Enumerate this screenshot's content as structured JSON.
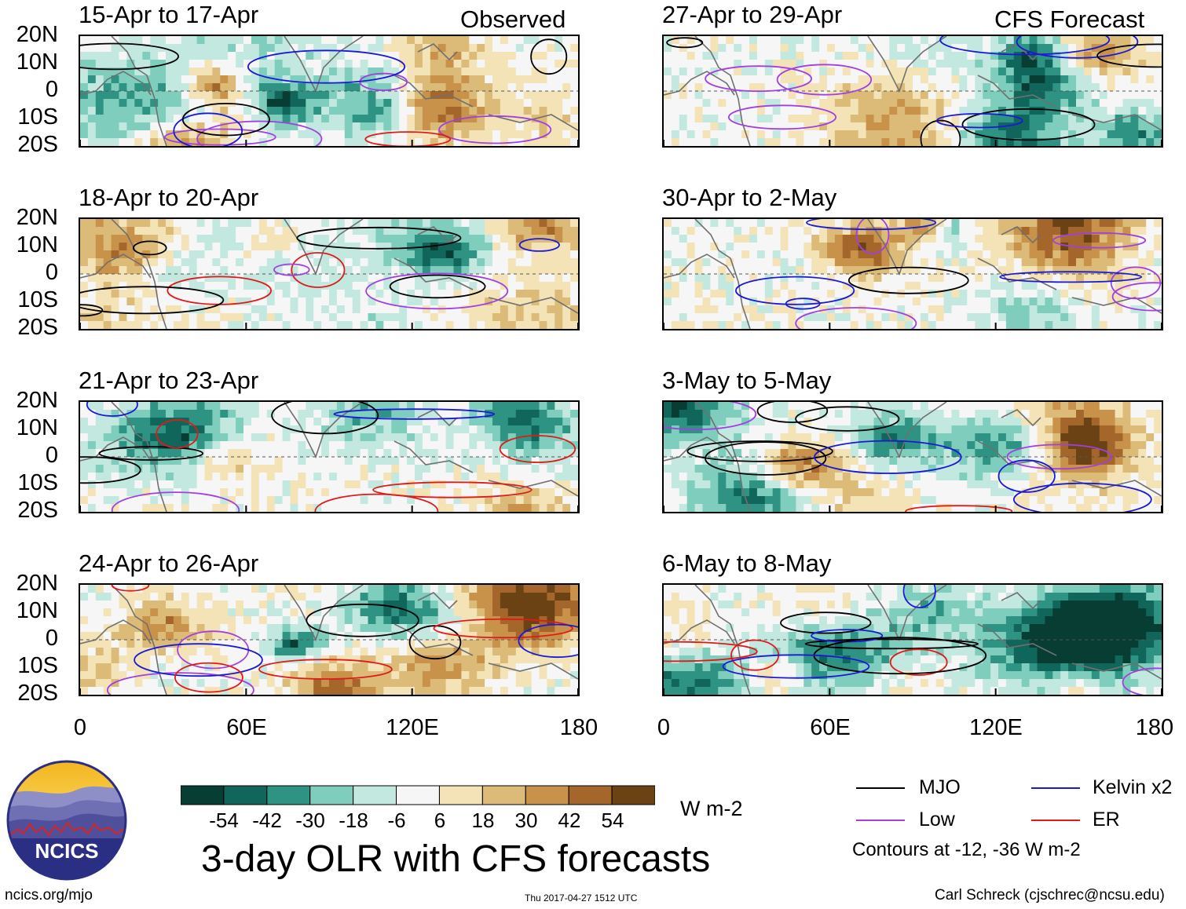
{
  "main_title": "3-day OLR with CFS forecasts",
  "column_labels": {
    "observed": "Observed",
    "forecast": "CFS Forecast"
  },
  "colors": {
    "palette": [
      "#073d33",
      "#10665b",
      "#2f9384",
      "#7fcdbd",
      "#c3e8e0",
      "#f6f6f6",
      "#f5e3b8",
      "#dcbb78",
      "#c8924a",
      "#a4662a",
      "#6b4213"
    ],
    "mjo": "#000000",
    "kelvin": "#1a1ad6",
    "low": "#a040e0",
    "er": "#e01a1a",
    "coast": "#707070"
  },
  "chart_data": {
    "type": "heatmap",
    "title": "3-day OLR with CFS forecasts",
    "variable": "OLR anomaly",
    "units": "W m-2",
    "colorbar_ticks": [
      "-54",
      "-42",
      "-30",
      "-18",
      "-6",
      "6",
      "18",
      "30",
      "42",
      "54"
    ],
    "lat_ticks": [
      "20N",
      "10N",
      "0",
      "10S",
      "20S"
    ],
    "lon_ticks": [
      "0",
      "60E",
      "120E",
      "180"
    ],
    "lat_range": [
      -20,
      20
    ],
    "lon_range": [
      0,
      180
    ],
    "panels": [
      {
        "period": "15-Apr to 17-Apr",
        "source": "Observed"
      },
      {
        "period": "18-Apr to 20-Apr",
        "source": "Observed"
      },
      {
        "period": "21-Apr to 23-Apr",
        "source": "Observed"
      },
      {
        "period": "24-Apr to 26-Apr",
        "source": "Observed"
      },
      {
        "period": "27-Apr to 29-Apr",
        "source": "CFS Forecast"
      },
      {
        "period": "30-Apr to 2-May",
        "source": "CFS Forecast"
      },
      {
        "period": "3-May to 5-May",
        "source": "CFS Forecast"
      },
      {
        "period": "6-May to 8-May",
        "source": "CFS Forecast"
      }
    ],
    "legend": [
      {
        "label": "MJO",
        "color": "#000000"
      },
      {
        "label": "Kelvin x2",
        "color": "#1a1ad6"
      },
      {
        "label": "Low",
        "color": "#a040e0"
      },
      {
        "label": "ER",
        "color": "#e01a1a"
      }
    ],
    "contour_note": "Contours at -12, -36 W m-2"
  },
  "logo": {
    "text": "NCICS"
  },
  "footer": {
    "website": "ncics.org/mjo",
    "timestamp": "Thu 2017-04-27 1512 UTC",
    "author": "Carl Schreck (cjschrec@ncsu.edu)"
  }
}
